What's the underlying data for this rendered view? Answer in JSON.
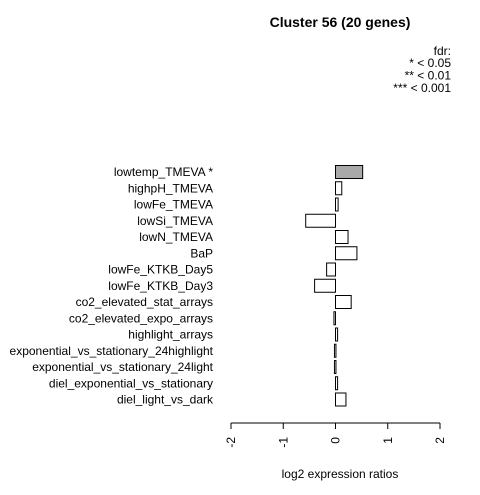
{
  "chart_data": {
    "type": "bar",
    "orientation": "horizontal",
    "title": "Cluster 56 (20 genes)",
    "xlabel": "log2 expression ratios",
    "ylabel": "",
    "xlim": [
      -2,
      2
    ],
    "xticks": [
      "-2",
      "-1",
      "0",
      "1",
      "2"
    ],
    "legend": {
      "title": "fdr:",
      "entries": [
        "* < 0.05",
        "** < 0.01",
        "*** < 0.001"
      ],
      "placement": "top-right"
    },
    "categories": [
      "lowtemp_TMEVA *",
      "highpH_TMEVA",
      "lowFe_TMEVA",
      "lowSi_TMEVA",
      "lowN_TMEVA",
      "BaP",
      "lowFe_KTKB_Day5",
      "lowFe_KTKB_Day3",
      "co2_elevated_stat_arrays",
      "co2_elevated_expo_arrays",
      "highlight_arrays",
      "exponential_vs_stationary_24highlight",
      "exponential_vs_stationary_24light",
      "diel_exponential_vs_stationary",
      "diel_light_vs_dark"
    ],
    "values": [
      0.52,
      0.12,
      0.05,
      -0.57,
      0.24,
      0.41,
      -0.17,
      -0.4,
      0.3,
      -0.03,
      0.04,
      -0.02,
      -0.02,
      0.04,
      0.2
    ],
    "significant": [
      true,
      false,
      false,
      false,
      false,
      false,
      false,
      false,
      false,
      false,
      false,
      false,
      false,
      false,
      false
    ],
    "colors": {
      "significant": "#a9a9a9",
      "normal": "#ffffff",
      "stroke": "#000000"
    }
  }
}
